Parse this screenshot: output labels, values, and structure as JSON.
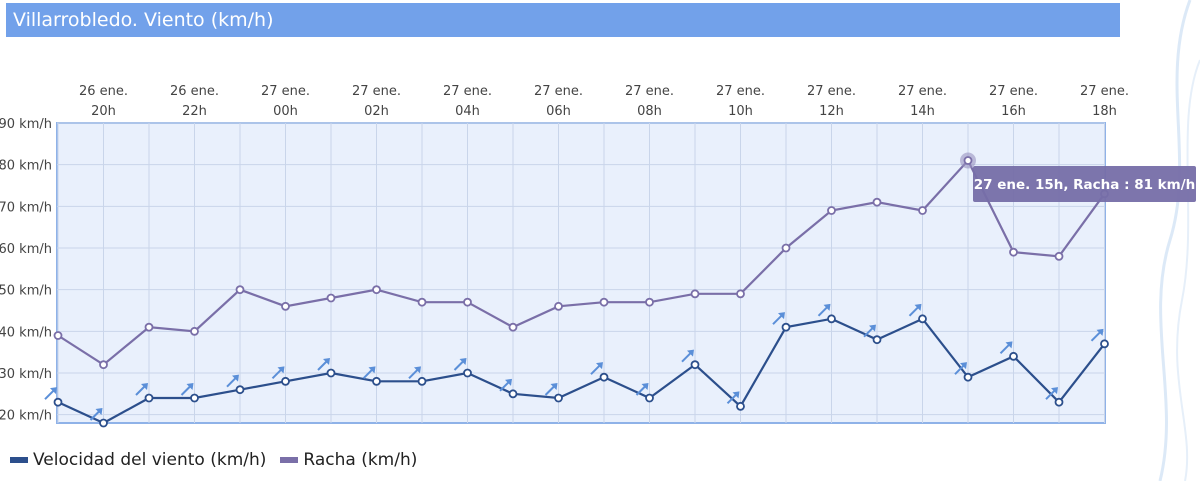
{
  "title": "Villarrobledo. Viento (km/h)",
  "colors": {
    "title_bg": "#72a1ea",
    "plot_bg": "#e9f0fc",
    "plot_border": "#8fb2e8",
    "wind": "#2c4f8c",
    "gust": "#7a6fa8",
    "arrow": "#5b8fd8",
    "tooltip_bg": "#766ea8"
  },
  "chart_data": {
    "type": "line",
    "x_labels": [
      [
        "26 ene.",
        "20h"
      ],
      [
        "26 ene.",
        "22h"
      ],
      [
        "27 ene.",
        "00h"
      ],
      [
        "27 ene.",
        "02h"
      ],
      [
        "27 ene.",
        "04h"
      ],
      [
        "27 ene.",
        "06h"
      ],
      [
        "27 ene.",
        "08h"
      ],
      [
        "27 ene.",
        "10h"
      ],
      [
        "27 ene.",
        "12h"
      ],
      [
        "27 ene.",
        "14h"
      ],
      [
        "27 ene.",
        "16h"
      ],
      [
        "27 ene.",
        "18h"
      ]
    ],
    "y_ticks": [
      "20 km/h",
      "30 km/h",
      "40 km/h",
      "50 km/h",
      "60 km/h",
      "70 km/h",
      "80 km/h",
      "90 km/h"
    ],
    "ylim": [
      18,
      90
    ],
    "series": [
      {
        "name": "Velocidad del viento (km/h)",
        "values": [
          23,
          18,
          24,
          24,
          26,
          28,
          30,
          28,
          28,
          30,
          25,
          24,
          29,
          24,
          32,
          22,
          41,
          43,
          38,
          43,
          29,
          34,
          23,
          37
        ],
        "wind_direction_icon": "northeast-arrow-icon"
      },
      {
        "name": "Racha (km/h)",
        "values": [
          39,
          32,
          41,
          40,
          50,
          46,
          48,
          50,
          47,
          47,
          41,
          46,
          47,
          47,
          49,
          49,
          60,
          69,
          71,
          69,
          81,
          59,
          58,
          73
        ]
      }
    ],
    "highlight": {
      "series_index": 1,
      "point_index": 20
    },
    "tooltip": {
      "label": "27 ene. 15h, Racha : 81 km/h"
    },
    "legend_position": "bottom-left",
    "grid": true
  },
  "legend": [
    {
      "label": "Velocidad del viento (km/h)",
      "color": "#2c4f8c"
    },
    {
      "label": "Racha (km/h)",
      "color": "#7a6fa8"
    }
  ]
}
